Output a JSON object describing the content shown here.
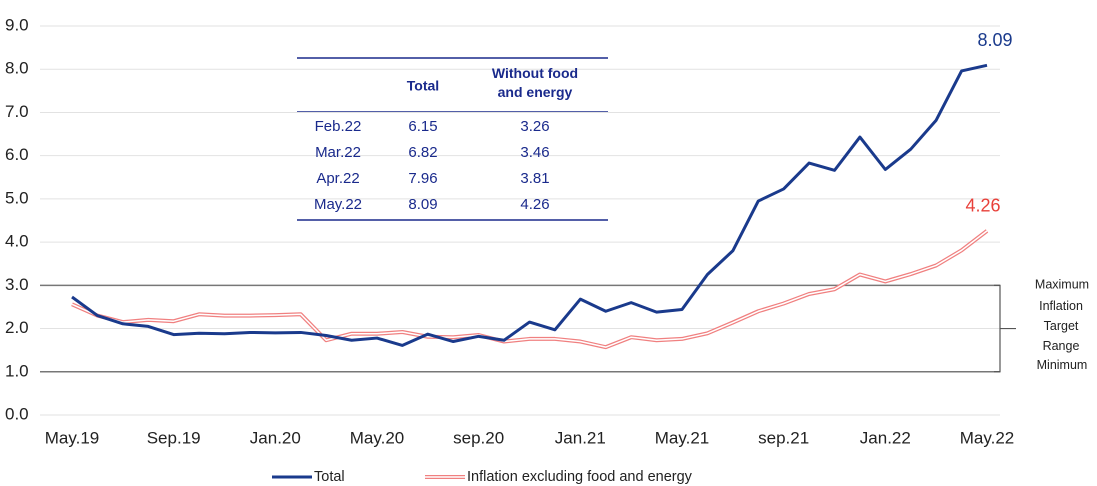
{
  "chart_data": {
    "type": "line",
    "categories": [
      "May.19",
      null,
      null,
      null,
      "Sep.19",
      null,
      null,
      null,
      "Jan.20",
      null,
      null,
      null,
      "May.20",
      null,
      null,
      null,
      "sep.20",
      null,
      null,
      null,
      "Jan.21",
      null,
      null,
      null,
      "May.21",
      null,
      null,
      null,
      "sep.21",
      null,
      null,
      null,
      "Jan.22",
      null,
      null,
      null,
      "May.22"
    ],
    "series": [
      {
        "name": "Total",
        "color": "#1a3a8c",
        "values": [
          2.73,
          2.3,
          2.11,
          2.05,
          1.86,
          1.89,
          1.88,
          1.91,
          1.9,
          1.91,
          1.84,
          1.73,
          1.78,
          1.61,
          1.87,
          1.7,
          1.82,
          1.73,
          2.15,
          1.97,
          2.68,
          2.4,
          2.6,
          2.38,
          2.44,
          3.25,
          3.8,
          4.95,
          5.23,
          5.83,
          5.66,
          6.43,
          5.68,
          6.15,
          6.82,
          7.96,
          8.09
        ]
      },
      {
        "name": "Inflation excluding food and energy",
        "color": "#f08080",
        "values": [
          2.56,
          2.3,
          2.15,
          2.2,
          2.17,
          2.33,
          2.3,
          2.3,
          2.31,
          2.33,
          1.73,
          1.88,
          1.88,
          1.92,
          1.81,
          1.8,
          1.85,
          1.7,
          1.76,
          1.76,
          1.7,
          1.57,
          1.8,
          1.73,
          1.76,
          1.89,
          2.14,
          2.4,
          2.58,
          2.8,
          2.91,
          3.25,
          3.09,
          3.26,
          3.46,
          3.81,
          4.26
        ]
      }
    ],
    "ylim": [
      0,
      9
    ],
    "yticks": [
      {
        "value": 0,
        "label": "0.0"
      },
      {
        "value": 1,
        "label": "1.0"
      },
      {
        "value": 2,
        "label": "2.0"
      },
      {
        "value": 3,
        "label": "3.0"
      },
      {
        "value": 4,
        "label": "4.0"
      },
      {
        "value": 5,
        "label": "5.0"
      },
      {
        "value": 6,
        "label": "6.0"
      },
      {
        "value": 7,
        "label": "7.0"
      },
      {
        "value": 8,
        "label": "8.0"
      },
      {
        "value": 9,
        "label": "9.0"
      }
    ],
    "grid": true,
    "legend": "bottom",
    "target_range": {
      "values": [
        1,
        3
      ],
      "max_label": "Maximum",
      "min_label": "Minimum",
      "label": "Inflation Target Range"
    },
    "table": {
      "columns": [
        "Total",
        "Without food and energy"
      ],
      "rows": [
        [
          "Feb.22",
          "6.15",
          "3.26"
        ],
        [
          "Mar.22",
          "6.82",
          "3.46"
        ],
        [
          "Apr.22",
          "7.96",
          "3.81"
        ],
        [
          "May.22",
          "8.09",
          "4.26"
        ]
      ]
    }
  }
}
